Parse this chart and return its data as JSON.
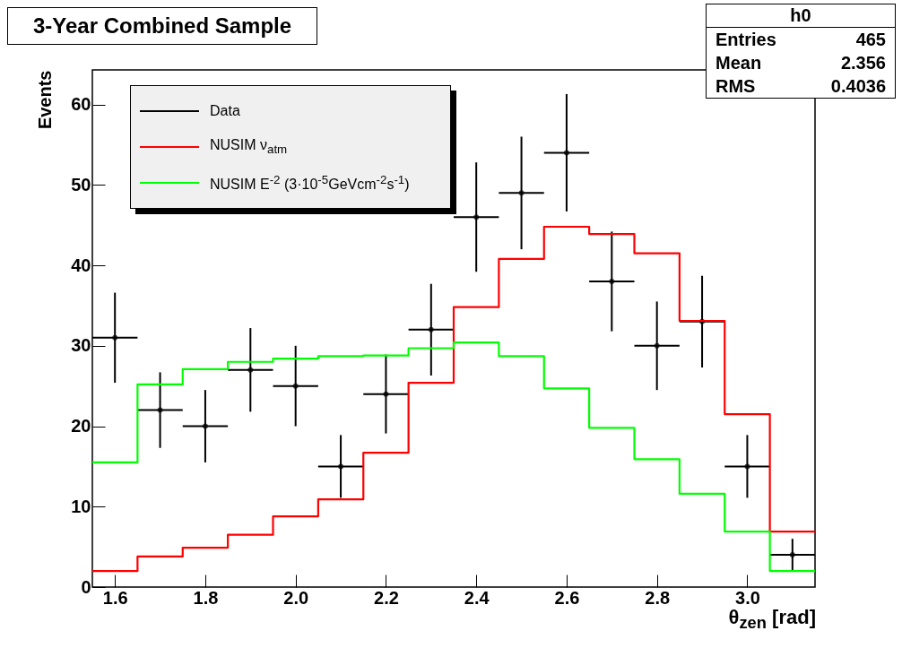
{
  "chart_data": {
    "type": "histogram",
    "title": "3-Year Combined Sample",
    "xlabel": "θ$_{zen}$ [rad]",
    "ylabel": "Events",
    "bins": [
      1.55,
      1.65,
      1.75,
      1.85,
      1.95,
      2.05,
      2.15,
      2.25,
      2.35,
      2.45,
      2.55,
      2.65,
      2.75,
      2.85,
      2.95,
      3.05,
      3.15
    ],
    "series": [
      {
        "name": "Data",
        "type": "scatter",
        "color": "#000000",
        "x": [
          1.6,
          1.7,
          1.8,
          1.9,
          2.0,
          2.1,
          2.2,
          2.3,
          2.4,
          2.5,
          2.6,
          2.7,
          2.8,
          2.9,
          3.0,
          3.1
        ],
        "values": [
          31,
          22,
          20,
          27,
          25,
          15,
          24,
          32,
          46,
          49,
          54,
          38,
          30,
          33,
          15,
          4
        ],
        "errors": [
          5.6,
          4.7,
          4.5,
          5.2,
          5,
          3.9,
          4.9,
          5.7,
          6.8,
          7,
          7.3,
          6.2,
          5.5,
          5.7,
          3.9,
          2
        ],
        "xerrors": [
          0.05,
          0.05,
          0.05,
          0.05,
          0.05,
          0.05,
          0.05,
          0.05,
          0.05,
          0.05,
          0.05,
          0.05,
          0.05,
          0.05,
          0.05,
          0.05
        ]
      },
      {
        "name": "NUSIM ν$_{atm}$",
        "color": "#ff0000",
        "values": [
          2.0,
          3.8,
          4.9,
          6.5,
          8.8,
          10.9,
          16.7,
          25.4,
          34.8,
          40.8,
          44.8,
          43.9,
          41.5,
          33.1,
          21.5,
          6.9
        ]
      },
      {
        "name": "NUSIM E$^{-2}$ (3·10$^{-5}$GeVcm$^{-2}$s$^{-1}$)",
        "color": "#00ff00",
        "values": [
          15.5,
          25.2,
          27.1,
          28.0,
          28.4,
          28.7,
          28.8,
          29.7,
          30.4,
          28.7,
          24.7,
          19.8,
          15.9,
          11.6,
          6.9,
          2.0
        ]
      }
    ],
    "xlim": [
      1.55,
      3.15
    ],
    "xticks": [
      1.6,
      1.8,
      {
        "value": 2,
        "label": "2.0"
      },
      2.2,
      2.4,
      2.6,
      2.8,
      {
        "value": 3,
        "label": "3.0"
      }
    ],
    "ylim": [
      0,
      64.3
    ],
    "yticks": [
      0,
      10,
      20,
      30,
      40,
      50,
      60
    ],
    "legend": "top left",
    "annotations": [
      "h0",
      "Entries 465",
      "Mean 2.356",
      "RMS 0.4036"
    ]
  }
}
